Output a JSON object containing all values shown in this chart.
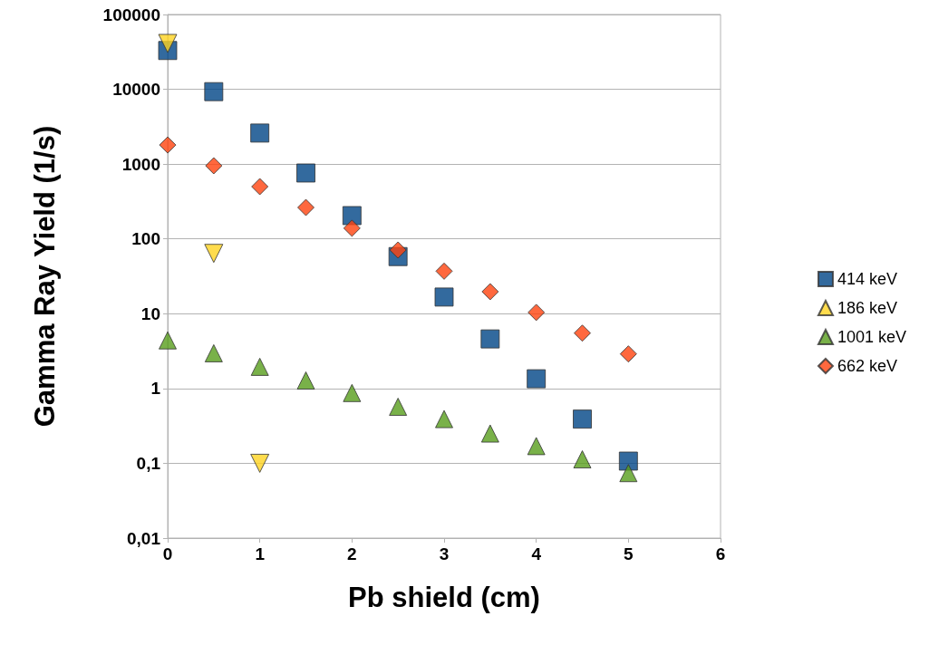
{
  "chart_data": {
    "type": "scatter",
    "xlabel": "Pb shield (cm)",
    "ylabel": "Gamma Ray Yield (1/s)",
    "log": "y",
    "grid": "y",
    "legend": "right",
    "xlim": [
      0,
      6
    ],
    "xticks": [
      0,
      1,
      2,
      3,
      4,
      5,
      6
    ],
    "ylim": [
      0.01,
      100000
    ],
    "yticks": [
      {
        "value": 0.01,
        "label": "0,01"
      },
      {
        "value": 0.1,
        "label": "0,1"
      },
      1,
      10,
      100,
      1000,
      10000,
      100000
    ],
    "series": [
      {
        "name": "414 keV",
        "color": "#004586",
        "marker": "square",
        "x": [
          0,
          0.5,
          1,
          1.5,
          2,
          2.5,
          3,
          3.5,
          4,
          4.5,
          5
        ],
        "values": [
          33000,
          9300,
          2600,
          760,
          205,
          58,
          16.7,
          4.6,
          1.35,
          0.39,
          0.107
        ]
      },
      {
        "name": "186 keV",
        "color": "#ffd320",
        "marker": "triangle_down",
        "x": [
          0,
          0.5,
          1
        ],
        "values": [
          41000,
          64,
          0.1
        ]
      },
      {
        "name": "1001 keV",
        "color": "#579d1c",
        "marker": "triangle",
        "x": [
          0,
          0.5,
          1,
          1.5,
          2,
          2.5,
          3,
          3.5,
          4,
          4.5,
          5
        ],
        "values": [
          4.4,
          2.96,
          1.95,
          1.28,
          0.87,
          0.57,
          0.39,
          0.25,
          0.17,
          0.113,
          0.074
        ]
      },
      {
        "name": "662 keV",
        "color": "#ff420e",
        "marker": "diamond",
        "x": [
          0,
          0.5,
          1,
          1.5,
          2,
          2.5,
          3,
          3.5,
          4,
          4.5,
          5
        ],
        "values": [
          1800,
          950,
          500,
          263,
          139,
          71,
          37,
          19.7,
          10.4,
          5.5,
          2.9
        ]
      }
    ]
  }
}
